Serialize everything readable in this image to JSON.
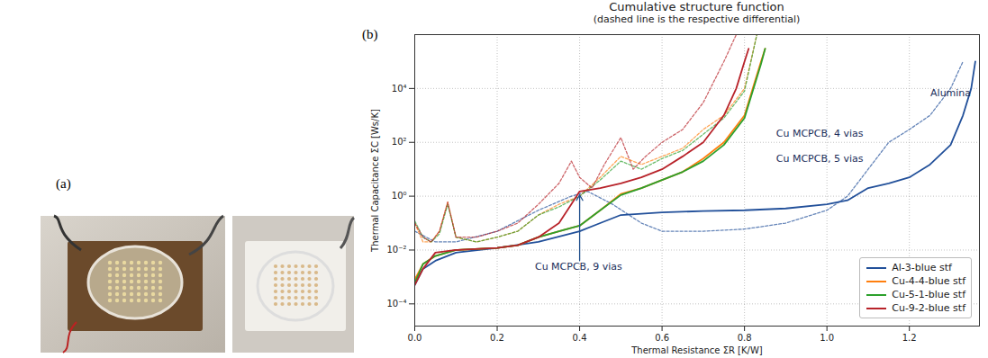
{
  "figure": {
    "panel_labels": [
      "(a)",
      "(b)"
    ]
  },
  "chart_data": {
    "type": "line",
    "title": "Cumulative structure function",
    "subtitle": "(dashed line is the respective differential)",
    "x_label": "Thermal Resistance ΣR [K/W]",
    "y_label": "Thermal Capacitance ΣC [Ws/K]",
    "log": "y",
    "grid": true,
    "legend": "lower right",
    "xlim": [
      0,
      1.37
    ],
    "xticks": [
      {
        "value": 0,
        "label": "0.0"
      },
      {
        "value": 0.2,
        "label": "0.2"
      },
      {
        "value": 0.4,
        "label": "0.4"
      },
      {
        "value": 0.6,
        "label": "0.6"
      },
      {
        "value": 0.8,
        "label": "0.8"
      },
      {
        "value": 1,
        "label": "1.0"
      },
      {
        "value": 1.2,
        "label": "1.2"
      }
    ],
    "ylim": [
      1.5e-05,
      1000000
    ],
    "yticks": [
      {
        "value": 0.0001,
        "label": "10⁻⁴"
      },
      {
        "value": 0.01,
        "label": "10⁻²"
      },
      {
        "value": 1,
        "label": "10⁰"
      },
      {
        "value": 100,
        "label": "10²"
      },
      {
        "value": 10000,
        "label": "10⁴"
      }
    ],
    "annotations": [
      "Alumina",
      "Cu MCPCB, 4 vias",
      "Cu MCPCB, 5 vias",
      "Cu MCPCB, 9 vias"
    ],
    "series": [
      {
        "name": "Al-3-blue stf",
        "color": "#22509a",
        "line_style": "solid",
        "x": [
          0,
          0.02,
          0.05,
          0.1,
          0.2,
          0.3,
          0.4,
          0.45,
          0.5,
          0.6,
          0.7,
          0.8,
          0.9,
          1.0,
          1.05,
          1.1,
          1.15,
          1.2,
          1.25,
          1.3,
          1.33,
          1.35,
          1.36
        ],
        "values": [
          0.0005,
          0.002,
          0.004,
          0.008,
          0.012,
          0.02,
          0.05,
          0.1,
          0.2,
          0.25,
          0.28,
          0.3,
          0.35,
          0.5,
          0.7,
          2,
          3,
          5,
          15,
          80,
          1000,
          10000,
          100000
        ],
        "differential": {
          "line_style": "dashed",
          "x": [
            0,
            0.05,
            0.1,
            0.2,
            0.3,
            0.38,
            0.42,
            0.48,
            0.55,
            0.6,
            0.7,
            0.8,
            0.9,
            1.0,
            1.05,
            1.1,
            1.15,
            1.2,
            1.25,
            1.3,
            1.33
          ],
          "values": [
            0.05,
            0.02,
            0.02,
            0.05,
            0.3,
            1,
            1.5,
            0.5,
            0.1,
            0.05,
            0.05,
            0.06,
            0.1,
            0.3,
            1,
            10,
            100,
            300,
            1000,
            10000,
            100000
          ]
        }
      },
      {
        "name": "Cu-4-4-blue stf",
        "color": "#ff7f0e",
        "line_style": "solid",
        "x": [
          0,
          0.02,
          0.05,
          0.1,
          0.2,
          0.25,
          0.3,
          0.35,
          0.4,
          0.45,
          0.5,
          0.55,
          0.6,
          0.65,
          0.7,
          0.75,
          0.8,
          0.82,
          0.84,
          0.85
        ],
        "values": [
          0.0008,
          0.003,
          0.006,
          0.01,
          0.012,
          0.015,
          0.03,
          0.05,
          0.08,
          0.3,
          1.2,
          2,
          4,
          8,
          25,
          100,
          1000,
          10000,
          100000,
          300000
        ],
        "differential": {
          "line_style": "dashed",
          "x": [
            0,
            0.02,
            0.04,
            0.06,
            0.08,
            0.1,
            0.15,
            0.2,
            0.25,
            0.3,
            0.35,
            0.4,
            0.45,
            0.5,
            0.55,
            0.6,
            0.65,
            0.7,
            0.75,
            0.8,
            0.83
          ],
          "values": [
            0.1,
            0.02,
            0.02,
            0.05,
            0.6,
            0.03,
            0.02,
            0.03,
            0.05,
            0.2,
            0.5,
            1,
            5,
            30,
            15,
            30,
            60,
            300,
            1000,
            10000,
            1000000
          ]
        }
      },
      {
        "name": "Cu-5-1-blue stf",
        "color": "#2ca02c",
        "line_style": "solid",
        "x": [
          0,
          0.02,
          0.05,
          0.1,
          0.2,
          0.25,
          0.3,
          0.35,
          0.4,
          0.45,
          0.5,
          0.55,
          0.6,
          0.65,
          0.7,
          0.75,
          0.8,
          0.82,
          0.84,
          0.85
        ],
        "values": [
          0.0006,
          0.003,
          0.006,
          0.01,
          0.012,
          0.015,
          0.03,
          0.05,
          0.08,
          0.3,
          1.1,
          2,
          4,
          8,
          20,
          80,
          800,
          8000,
          80000,
          300000
        ],
        "differential": {
          "line_style": "dashed",
          "x": [
            0,
            0.02,
            0.04,
            0.06,
            0.08,
            0.1,
            0.15,
            0.2,
            0.25,
            0.3,
            0.35,
            0.4,
            0.45,
            0.5,
            0.55,
            0.6,
            0.65,
            0.7,
            0.75,
            0.8,
            0.83
          ],
          "values": [
            0.12,
            0.03,
            0.02,
            0.04,
            0.5,
            0.03,
            0.02,
            0.03,
            0.05,
            0.2,
            0.4,
            1,
            4,
            20,
            10,
            25,
            50,
            200,
            800,
            8000,
            1000000
          ]
        }
      },
      {
        "name": "Cu-9-2-blue stf",
        "color": "#b8232a",
        "line_style": "solid",
        "x": [
          0,
          0.02,
          0.05,
          0.1,
          0.2,
          0.25,
          0.3,
          0.35,
          0.38,
          0.4,
          0.45,
          0.5,
          0.55,
          0.6,
          0.65,
          0.7,
          0.75,
          0.78,
          0.8,
          0.81
        ],
        "values": [
          0.0005,
          0.002,
          0.008,
          0.01,
          0.012,
          0.015,
          0.03,
          0.1,
          0.5,
          1.5,
          2,
          3,
          5,
          10,
          30,
          100,
          1000,
          10000,
          100000,
          300000
        ],
        "differential": {
          "line_style": "dashed",
          "x": [
            0,
            0.02,
            0.04,
            0.06,
            0.08,
            0.1,
            0.15,
            0.2,
            0.25,
            0.3,
            0.35,
            0.38,
            0.4,
            0.43,
            0.46,
            0.5,
            0.53,
            0.56,
            0.6,
            0.65,
            0.7,
            0.75,
            0.78
          ],
          "values": [
            0.1,
            0.03,
            0.02,
            0.05,
            0.6,
            0.03,
            0.03,
            0.05,
            0.1,
            0.5,
            3,
            20,
            5,
            2,
            15,
            150,
            10,
            30,
            100,
            300,
            3000,
            100000,
            1000000
          ]
        }
      }
    ]
  }
}
